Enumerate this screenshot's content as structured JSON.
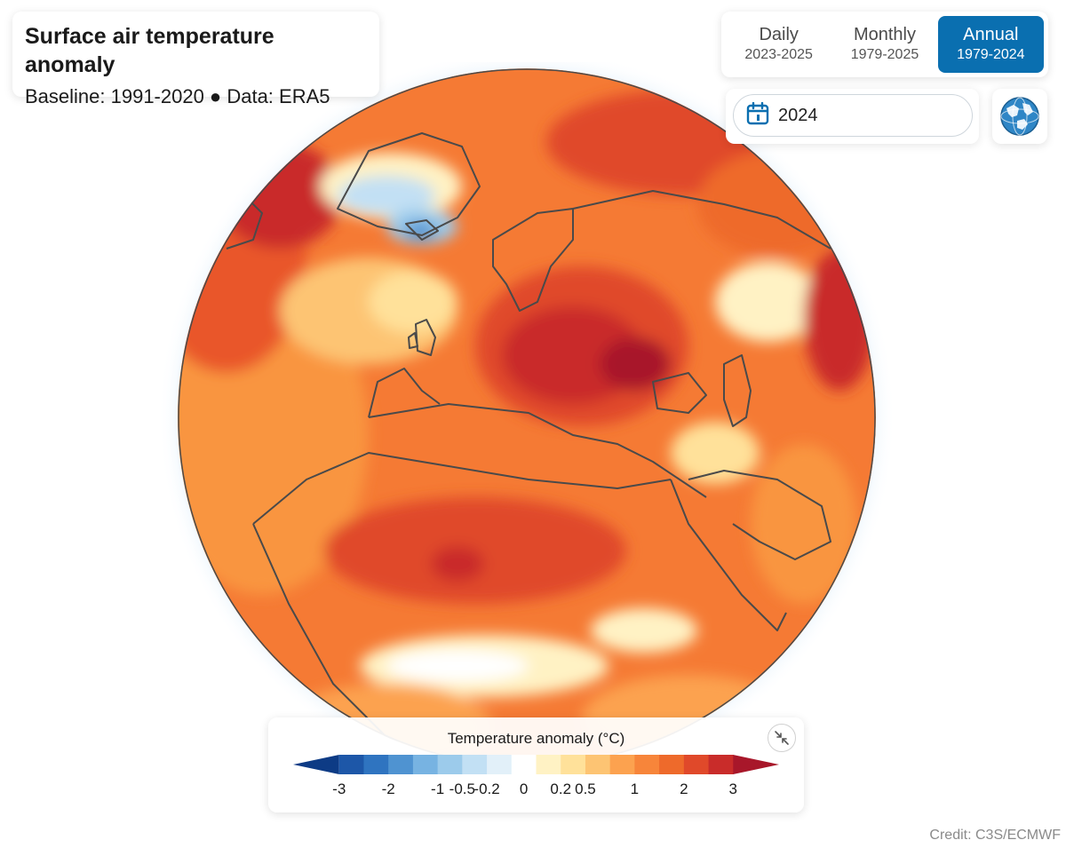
{
  "header": {
    "title": "Surface air temperature anomaly",
    "subtitle": "Baseline: 1991-2020 ● Data: ERA5"
  },
  "range_toggle": {
    "options": [
      {
        "label": "Daily",
        "range": "2023-2025",
        "active": false
      },
      {
        "label": "Monthly",
        "range": "1979-2025",
        "active": false
      },
      {
        "label": "Annual",
        "range": "1979-2024",
        "active": true
      }
    ]
  },
  "date_selector": {
    "value": "2024",
    "icon": "calendar-icon"
  },
  "projection_button": {
    "icon": "globe-icon"
  },
  "legend": {
    "title": "Temperature anomaly (°C)",
    "tick_labels": [
      "-3",
      "-2",
      "-1",
      "-0.5",
      "-0.2",
      "0",
      "0.2",
      "0.5",
      "1",
      "2",
      "3"
    ],
    "colors": [
      "#0d3b85",
      "#1d57a8",
      "#2f74c0",
      "#4f93d1",
      "#77b3e2",
      "#9ccbeb",
      "#c2e0f4",
      "#e2f0f9",
      "#ffffff",
      "#fff2c4",
      "#ffe19a",
      "#fdc473",
      "#fca24f",
      "#f7853a",
      "#ee6a2b",
      "#e0492a",
      "#c92c2a",
      "#a8172a"
    ],
    "collapse_icon": "collapse-arrows-icon"
  },
  "map": {
    "type": "orthographic-globe",
    "variable": "surface air temperature anomaly",
    "year": "2024",
    "region": "Europe, North Africa, Middle East"
  },
  "credit": "Credit: C3S/ECMWF"
}
